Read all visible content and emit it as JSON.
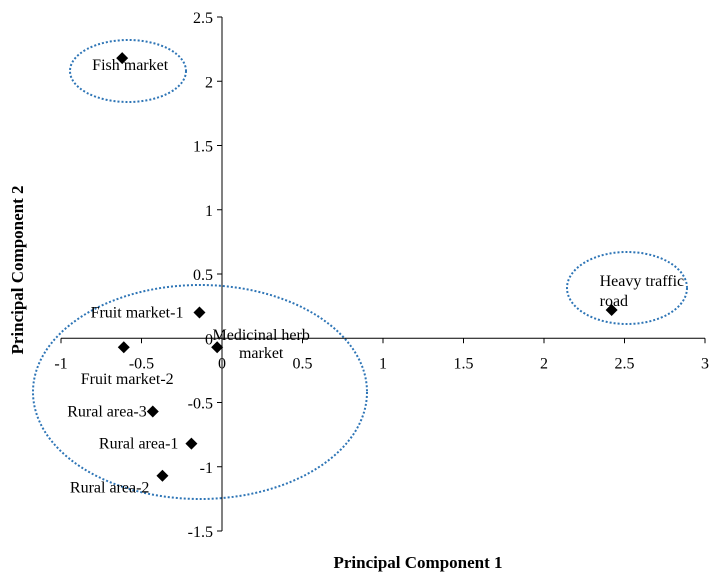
{
  "chart_data": {
    "type": "scatter",
    "title": "",
    "xlabel": "Principal Component 1",
    "ylabel": "Principal Component 2",
    "xlim": [
      -1,
      3
    ],
    "ylim": [
      -1.5,
      2.5
    ],
    "x_ticks": [
      "-1",
      "-0.5",
      "0",
      "0.5",
      "1",
      "1.5",
      "2",
      "2.5",
      "3"
    ],
    "y_ticks": [
      "2.5",
      "2",
      "1.5",
      "1",
      "0.5",
      "0",
      "-0.5",
      "-1",
      "-1.5"
    ],
    "grid": false,
    "legend": "none",
    "marker_color": "#000000",
    "cluster_color": "#2E75B6",
    "points": [
      {
        "label": "Fish market",
        "x": -0.62,
        "y": 2.18
      },
      {
        "label": "Fruit market-1",
        "x": -0.14,
        "y": 0.2
      },
      {
        "label": "Medicinal herb market",
        "label_lines": [
          "Medicinal herb",
          "market"
        ],
        "x": -0.03,
        "y": -0.07
      },
      {
        "label": "Fruit market-2",
        "x": -0.61,
        "y": -0.07
      },
      {
        "label": "Rural area-3",
        "x": -0.43,
        "y": -0.57
      },
      {
        "label": "Rural area-1",
        "x": -0.19,
        "y": -0.82
      },
      {
        "label": "Rural area-2",
        "x": -0.37,
        "y": -1.07
      },
      {
        "label": "Heavy traffic road",
        "label_lines": [
          "Heavy traffic",
          "road"
        ],
        "x": 2.42,
        "y": 0.22
      }
    ]
  }
}
